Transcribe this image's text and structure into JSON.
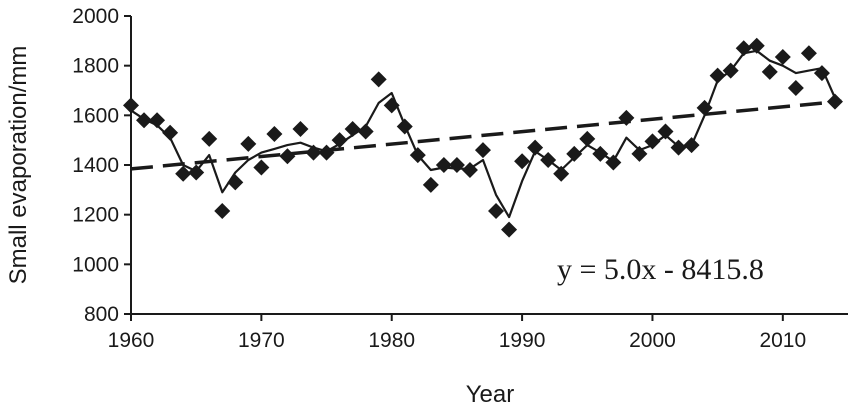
{
  "chart_data": {
    "type": "scatter",
    "xlabel": "Year",
    "ylabel": "Small evaporation/mm",
    "xlim": [
      1960,
      2015
    ],
    "ylim": [
      800,
      2000
    ],
    "x_ticks": [
      1960,
      1970,
      1980,
      1990,
      2000,
      2010
    ],
    "y_ticks": [
      800,
      1000,
      1200,
      1400,
      1600,
      1800,
      2000
    ],
    "grid": false,
    "annotation": "y = 5.0x - 8415.8",
    "trend": {
      "slope": 5.0,
      "intercept": -8415.8
    },
    "series": [
      {
        "marker": "diamond",
        "x": [
          1960,
          1961,
          1962,
          1963,
          1964,
          1965,
          1966,
          1967,
          1968,
          1969,
          1970,
          1971,
          1972,
          1973,
          1974,
          1975,
          1976,
          1977,
          1978,
          1979,
          1980,
          1981,
          1982,
          1983,
          1984,
          1985,
          1986,
          1987,
          1988,
          1989,
          1990,
          1991,
          1992,
          1993,
          1994,
          1995,
          1996,
          1997,
          1998,
          1999,
          2000,
          2001,
          2002,
          2003,
          2004,
          2005,
          2006,
          2007,
          2008,
          2009,
          2010,
          2011,
          2012,
          2013,
          2014
        ],
        "y": [
          1640,
          1580,
          1580,
          1530,
          1365,
          1370,
          1505,
          1215,
          1330,
          1485,
          1390,
          1525,
          1435,
          1545,
          1450,
          1450,
          1500,
          1545,
          1535,
          1745,
          1640,
          1555,
          1440,
          1320,
          1400,
          1400,
          1380,
          1460,
          1215,
          1140,
          1415,
          1470,
          1420,
          1365,
          1445,
          1505,
          1445,
          1410,
          1590,
          1445,
          1495,
          1535,
          1470,
          1480,
          1630,
          1760,
          1780,
          1870,
          1880,
          1775,
          1835,
          1710,
          1850,
          1770,
          1655
        ]
      },
      {
        "style": "solid-line",
        "x": [
          1960,
          1961,
          1962,
          1963,
          1964,
          1965,
          1966,
          1967,
          1968,
          1969,
          1970,
          1971,
          1972,
          1973,
          1974,
          1975,
          1976,
          1977,
          1978,
          1979,
          1980,
          1981,
          1982,
          1983,
          1984,
          1985,
          1986,
          1987,
          1988,
          1989,
          1990,
          1991,
          1992,
          1993,
          1994,
          1995,
          1996,
          1997,
          1998,
          1999,
          2000,
          2001,
          2002,
          2003,
          2004,
          2005,
          2006,
          2007,
          2008,
          2009,
          2010,
          2011,
          2012,
          2013,
          2014
        ],
        "y": [
          1620,
          1585,
          1560,
          1510,
          1400,
          1375,
          1440,
          1290,
          1370,
          1420,
          1450,
          1465,
          1480,
          1490,
          1470,
          1455,
          1485,
          1520,
          1555,
          1650,
          1690,
          1560,
          1440,
          1380,
          1390,
          1385,
          1385,
          1420,
          1280,
          1190,
          1335,
          1455,
          1420,
          1380,
          1430,
          1480,
          1450,
          1415,
          1510,
          1460,
          1480,
          1520,
          1475,
          1480,
          1600,
          1740,
          1780,
          1850,
          1860,
          1820,
          1800,
          1770,
          1780,
          1790,
          1670
        ]
      },
      {
        "style": "dashed-trend"
      }
    ]
  }
}
